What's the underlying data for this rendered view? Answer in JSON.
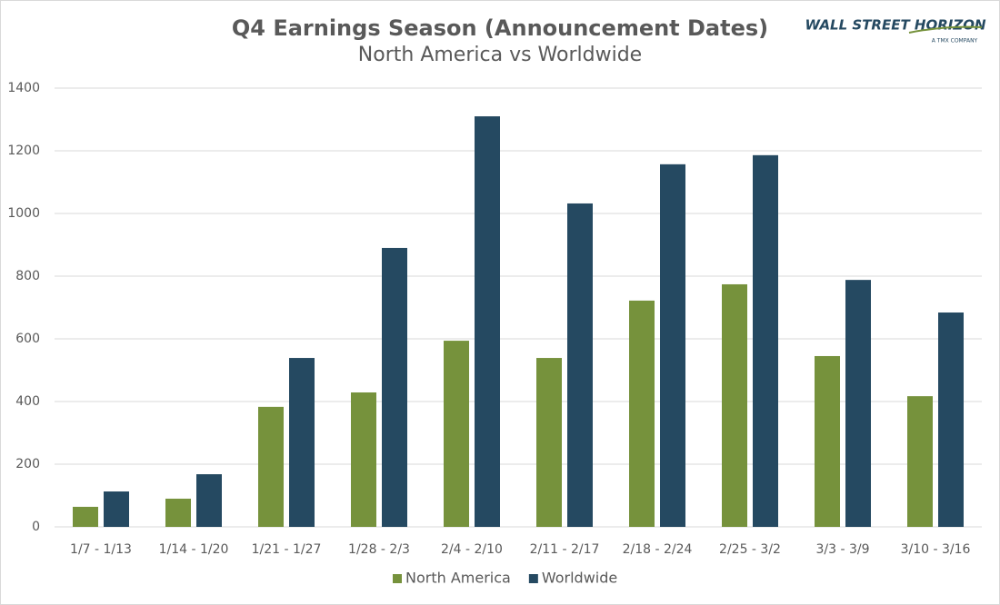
{
  "chart_data": {
    "type": "bar",
    "title": "Q4 Earnings Season (Announcement Dates)",
    "subtitle": "North America vs Worldwide",
    "logo": {
      "name": "WALL STREET HORIZON",
      "tagline": "A TMX COMPANY"
    },
    "categories": [
      "1/7 - 1/13",
      "1/14 - 1/20",
      "1/21 - 1/27",
      "1/28 - 2/3",
      "2/4 - 2/10",
      "2/11 - 2/17",
      "2/18 - 2/24",
      "2/25 - 3/2",
      "3/3 - 3/9",
      "3/10 - 3/16"
    ],
    "series": [
      {
        "name": "North America",
        "color": "#76923c",
        "values": [
          64,
          90,
          383,
          429,
          594,
          539,
          722,
          774,
          545,
          417
        ]
      },
      {
        "name": "Worldwide",
        "color": "#254961",
        "values": [
          113,
          168,
          539,
          890,
          1310,
          1032,
          1157,
          1186,
          788,
          684
        ]
      }
    ],
    "ylim": [
      0,
      1400
    ],
    "yticks": [
      0,
      200,
      400,
      600,
      800,
      1000,
      1200,
      1400
    ],
    "grid": true,
    "legend": "bottom"
  }
}
